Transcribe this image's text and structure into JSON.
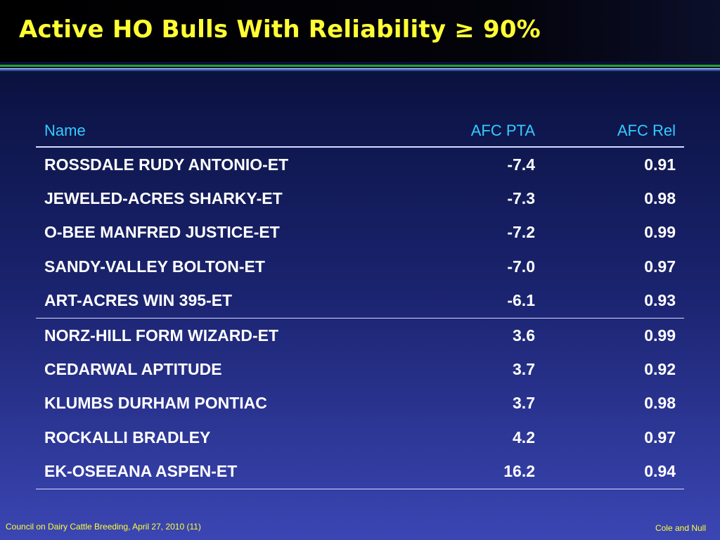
{
  "title": "Active HO Bulls With Reliability ≥ 90%",
  "table": {
    "headers": [
      "Name",
      "AFC PTA",
      "AFC Rel"
    ],
    "rows": [
      [
        "ROSSDALE RUDY ANTONIO-ET",
        "-7.4",
        "0.91"
      ],
      [
        "JEWELED-ACRES SHARKY-ET",
        "-7.3",
        "0.98"
      ],
      [
        "O-BEE MANFRED JUSTICE-ET",
        "-7.2",
        "0.99"
      ],
      [
        "SANDY-VALLEY BOLTON-ET",
        "-7.0",
        "0.97"
      ],
      [
        "ART-ACRES WIN 395-ET",
        "-6.1",
        "0.93"
      ],
      [
        "NORZ-HILL FORM WIZARD-ET",
        "3.6",
        "0.99"
      ],
      [
        "CEDARWAL APTITUDE",
        "3.7",
        "0.92"
      ],
      [
        "KLUMBS DURHAM PONTIAC",
        "3.7",
        "0.98"
      ],
      [
        "ROCKALLI BRADLEY",
        "4.2",
        "0.97"
      ],
      [
        "EK-OSEEANA ASPEN-ET",
        "16.2",
        "0.94"
      ]
    ]
  },
  "footer": {
    "left": "Council on Dairy Cattle Breeding, April 27, 2010 (11)",
    "right": "Cole and Null"
  },
  "colors": {
    "title": "#ffff33",
    "header_text": "#33ccff",
    "body_text": "#ffffff",
    "rule_green": "#2aa02a",
    "rule_blue": "#8fb7ff"
  }
}
